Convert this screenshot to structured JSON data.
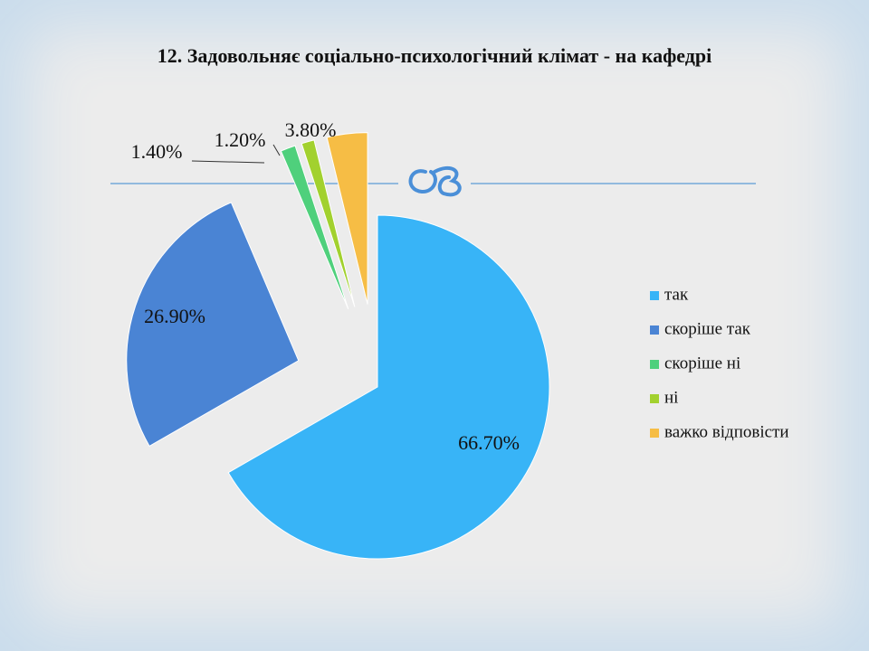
{
  "chart_data": {
    "type": "pie",
    "title": "12. Задовольняє соціально-психологічний клімат - на кафедрі",
    "categories": [
      "так",
      "скоріше так",
      "скоріше ні",
      "ні",
      "важко відповісти"
    ],
    "values": [
      66.7,
      26.9,
      1.4,
      1.2,
      3.8
    ],
    "value_labels": [
      "66.70%",
      "26.90%",
      "1.40%",
      "1.20%",
      "3.80%"
    ],
    "colors": [
      "#38b4f7",
      "#4a84d4",
      "#4fd07c",
      "#a2d12e",
      "#f6bd45"
    ],
    "legend": "right"
  }
}
